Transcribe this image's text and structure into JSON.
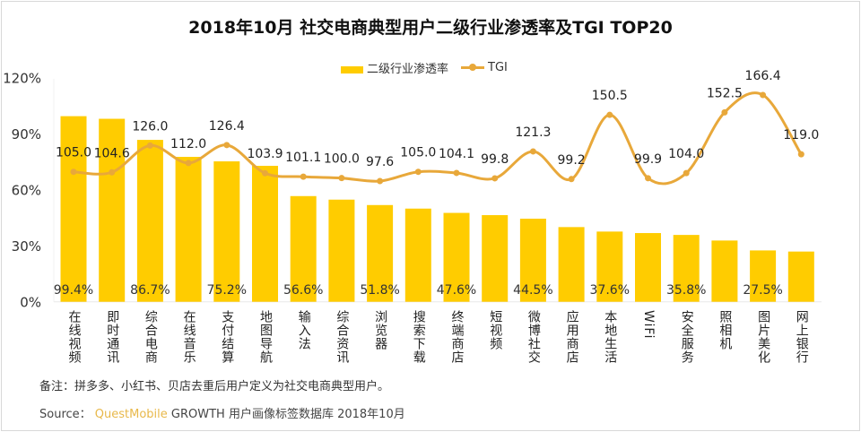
{
  "title": "2018年10月 社交电商典型用户二级行业渗透率及TGI TOP20",
  "footnote": "备注：拼多多、小红书、贝店去重后用户定义为社交电商典型用户。",
  "source": {
    "prefix": "Source：",
    "brand": "QuestMobile",
    "text": "GROWTH 用户画像标签数据库 2018年10月"
  },
  "colors": {
    "bar": "#FFCC00",
    "line": "#E8A83A",
    "brand": "#E8B84A"
  },
  "chart_data": {
    "type": "bar+line",
    "title": "2018年10月 社交电商典型用户二级行业渗透率及TGI TOP20",
    "legend_position": "top",
    "grid": false,
    "categories": [
      "在线视频",
      "即时通讯",
      "综合电商",
      "在线音乐",
      "支付结算",
      "地图导航",
      "输入法",
      "综合资讯",
      "浏览器",
      "搜索下载",
      "终端商店",
      "短视频",
      "微博社交",
      "应用商店",
      "本地生活",
      "WiFi",
      "安全服务",
      "照相机",
      "图片美化",
      "网上银行"
    ],
    "yaxis": {
      "ticks": [
        "0%",
        "30%",
        "60%",
        "90%",
        "120%"
      ],
      "ylim": [
        0,
        120
      ]
    },
    "series": [
      {
        "name": "二级行业渗透率",
        "type": "bar",
        "unit": "%",
        "values": [
          99.4,
          98.0,
          86.7,
          77.6,
          75.2,
          72.8,
          56.6,
          54.7,
          51.8,
          49.9,
          47.6,
          46.4,
          44.5,
          40.0,
          37.6,
          36.8,
          35.8,
          32.8,
          27.5,
          26.9
        ],
        "labels": [
          "99.4%",
          "",
          "86.7%",
          "",
          "75.2%",
          "",
          "56.6%",
          "",
          "51.8%",
          "",
          "47.6%",
          "",
          "44.5%",
          "",
          "37.6%",
          "",
          "35.8%",
          "",
          "27.5%",
          ""
        ]
      },
      {
        "name": "TGI",
        "type": "line",
        "values": [
          105.0,
          104.6,
          126.0,
          112.0,
          126.4,
          103.9,
          101.1,
          100.0,
          97.6,
          105.0,
          104.1,
          99.8,
          121.3,
          99.2,
          150.5,
          99.9,
          104.0,
          152.5,
          166.4,
          119.0
        ],
        "labels": [
          "105.0",
          "104.6",
          "126.0",
          "112.0",
          "126.4",
          "103.9",
          "101.1",
          "100.0",
          "97.6",
          "105.0",
          "104.1",
          "99.8",
          "121.3",
          "99.2",
          "150.5",
          "99.9",
          "104.0",
          "152.5",
          "166.4",
          "119.0"
        ]
      }
    ]
  }
}
